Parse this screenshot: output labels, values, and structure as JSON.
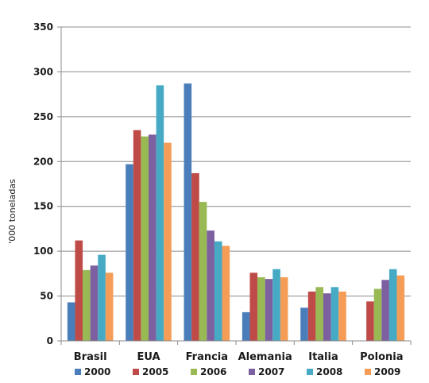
{
  "chart_data": {
    "type": "bar",
    "categories": [
      "Brasil",
      "EUA",
      "Francia",
      "Alemania",
      "Italia",
      "Polonia"
    ],
    "series": [
      {
        "name": "2000",
        "color": "#4a7ebb",
        "values": [
          43,
          197,
          287,
          32,
          37,
          0
        ]
      },
      {
        "name": "2005",
        "color": "#be4b48",
        "values": [
          112,
          235,
          187,
          76,
          55,
          44
        ]
      },
      {
        "name": "2006",
        "color": "#98b954",
        "values": [
          79,
          228,
          155,
          71,
          60,
          58
        ]
      },
      {
        "name": "2007",
        "color": "#7d60a0",
        "values": [
          84,
          230,
          123,
          69,
          53,
          68
        ]
      },
      {
        "name": "2008",
        "color": "#46aac5",
        "values": [
          96,
          285,
          111,
          80,
          60,
          80
        ]
      },
      {
        "name": "2009",
        "color": "#f59d56",
        "values": [
          76,
          221,
          106,
          71,
          55,
          73
        ]
      }
    ],
    "ylabel": "'000 toneladas",
    "ylim": [
      0,
      350
    ],
    "yticks": [
      0,
      50,
      100,
      150,
      200,
      250,
      300,
      350
    ],
    "grid": true,
    "legend_position": "bottom"
  }
}
